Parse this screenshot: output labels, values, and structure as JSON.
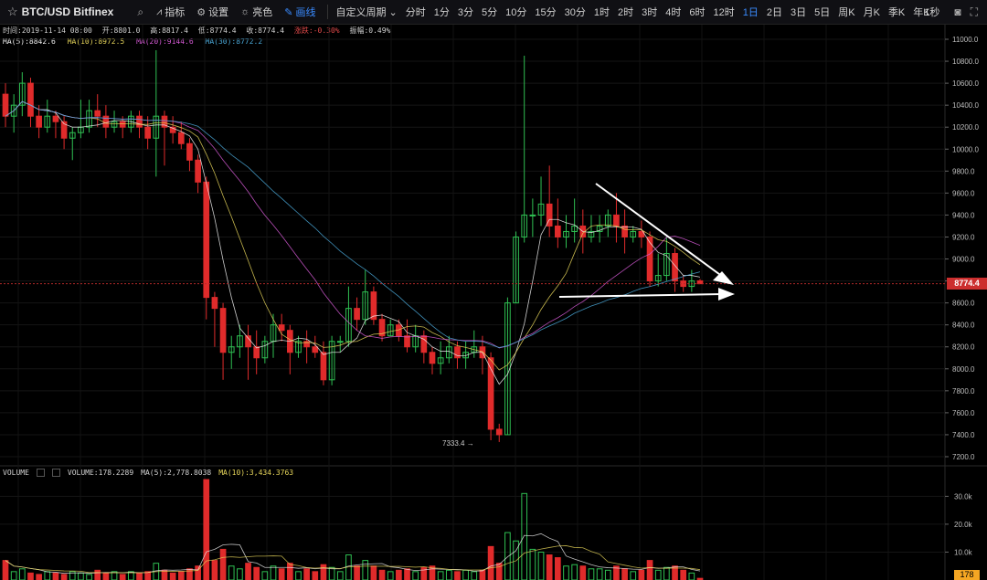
{
  "toolbar": {
    "symbol": "BTC/USD Bitfinex",
    "indicators_label": "指标",
    "settings_label": "设置",
    "theme_label": "亮色",
    "draw_label": "画线",
    "custom_period_label": "自定义周期",
    "periods": [
      "分时",
      "1分",
      "3分",
      "5分",
      "10分",
      "15分",
      "30分",
      "1时",
      "2时",
      "3时",
      "4时",
      "6时",
      "12时",
      "1日",
      "2日",
      "3日",
      "5日",
      "周K",
      "月K",
      "季K",
      "年K"
    ],
    "active_period": "1日",
    "interval_label": "1秒"
  },
  "ohlc": {
    "time": "时间:2019-11-14 08:00",
    "open": "开:8801.0",
    "high": "高:8817.4",
    "low": "低:8774.4",
    "close": "收:8774.4",
    "change": "涨跌:-0.30%",
    "amplitude": "振幅:0.49%"
  },
  "ma": {
    "ma5": "MA(5):8842.6",
    "ma10": "MA(10):8972.5",
    "ma20": "MA(20):9144.6",
    "ma30": "MA(30):8772.2"
  },
  "volume_header": {
    "label": "VOLUME",
    "value": "VOLUME:178.2289",
    "ma5": "MA(5):2,778.8038",
    "ma10": "MA(10):3,434.3763"
  },
  "current_price": "8774.4",
  "current_volume": "178",
  "low_marker": "7333.4 →",
  "price_axis": [
    "11000.0",
    "10800.0",
    "10600.0",
    "10400.0",
    "10200.0",
    "10000.0",
    "9800.0",
    "9600.0",
    "9400.0",
    "9200.0",
    "9000.0",
    "8800.0",
    "8600.0",
    "8400.0",
    "8200.0",
    "8000.0",
    "7800.0",
    "7600.0",
    "7400.0",
    "7200.0"
  ],
  "volume_axis": [
    "30.0k",
    "20.0k",
    "10.0k"
  ],
  "colors": {
    "up": "#2fbf52",
    "down": "#e02b2b",
    "ma5": "#f0f0f0",
    "ma10": "#e6d55a",
    "ma20": "#d65ad6",
    "ma30": "#4aa8d8",
    "accent": "#3a8bff"
  },
  "chart_data": {
    "type": "candlestick",
    "title": "BTC/USD Bitfinex",
    "interval": "1日",
    "ylim": [
      7200,
      11000
    ],
    "candles": [
      [
        10500,
        10300,
        10200,
        10600
      ],
      [
        10300,
        10400,
        10150,
        10500
      ],
      [
        10400,
        10600,
        10300,
        10700
      ],
      [
        10600,
        10300,
        10200,
        10650
      ],
      [
        10300,
        10200,
        10100,
        10400
      ],
      [
        10200,
        10300,
        10150,
        10450
      ],
      [
        10300,
        10250,
        10100,
        10350
      ],
      [
        10250,
        10100,
        10000,
        10300
      ],
      [
        10100,
        10150,
        9900,
        10200
      ],
      [
        10150,
        10200,
        10100,
        10450
      ],
      [
        10200,
        10350,
        10150,
        10450
      ],
      [
        10350,
        10300,
        10200,
        10500
      ],
      [
        10300,
        10200,
        10100,
        10400
      ],
      [
        10200,
        10250,
        10150,
        10350
      ],
      [
        10250,
        10200,
        10100,
        10300
      ],
      [
        10200,
        10300,
        10150,
        10350
      ],
      [
        10300,
        10200,
        10100,
        10350
      ],
      [
        10200,
        10100,
        10000,
        10300
      ],
      [
        10100,
        10300,
        9750,
        10900
      ],
      [
        10300,
        10200,
        9850,
        10350
      ],
      [
        10200,
        10150,
        10050,
        10300
      ],
      [
        10150,
        10050,
        10000,
        10250
      ],
      [
        10050,
        9900,
        9800,
        10100
      ],
      [
        9900,
        9700,
        9600,
        9950
      ],
      [
        9700,
        8650,
        8450,
        9750
      ],
      [
        8650,
        8550,
        8200,
        8700
      ],
      [
        8550,
        8150,
        7900,
        8600
      ],
      [
        8150,
        8200,
        8000,
        8300
      ],
      [
        8200,
        8300,
        8100,
        8400
      ],
      [
        8300,
        8200,
        7900,
        8400
      ],
      [
        8200,
        8100,
        7950,
        8350
      ],
      [
        8100,
        8250,
        8050,
        8300
      ],
      [
        8250,
        8400,
        8100,
        8500
      ],
      [
        8400,
        8350,
        8250,
        8500
      ],
      [
        8350,
        8150,
        7950,
        8400
      ],
      [
        8150,
        8250,
        8100,
        8300
      ],
      [
        8250,
        8200,
        8050,
        8350
      ],
      [
        8200,
        8150,
        8100,
        8300
      ],
      [
        8150,
        7900,
        7850,
        8250
      ],
      [
        7900,
        8250,
        7850,
        8300
      ],
      [
        8250,
        8250,
        8150,
        8300
      ],
      [
        8250,
        8550,
        8200,
        8750
      ],
      [
        8550,
        8450,
        8350,
        8650
      ],
      [
        8450,
        8700,
        8400,
        8900
      ],
      [
        8700,
        8450,
        8400,
        8750
      ],
      [
        8450,
        8300,
        8250,
        8500
      ],
      [
        8300,
        8400,
        8300,
        8450
      ],
      [
        8400,
        8300,
        8250,
        8450
      ],
      [
        8300,
        8200,
        8150,
        8450
      ],
      [
        8200,
        8300,
        8150,
        8400
      ],
      [
        8300,
        8150,
        8050,
        8350
      ],
      [
        8150,
        8050,
        7950,
        8200
      ],
      [
        8050,
        8100,
        7950,
        8250
      ],
      [
        8100,
        8200,
        8050,
        8300
      ],
      [
        8200,
        8100,
        8000,
        8250
      ],
      [
        8100,
        8150,
        8000,
        8250
      ],
      [
        8150,
        8200,
        8100,
        8350
      ],
      [
        8200,
        8100,
        7950,
        8300
      ],
      [
        8100,
        7450,
        7350,
        8150
      ],
      [
        7450,
        7400,
        7333.4,
        7500
      ],
      [
        7400,
        8600,
        7400,
        8650
      ],
      [
        8600,
        9200,
        8600,
        9250
      ],
      [
        9200,
        9400,
        9150,
        10850
      ],
      [
        9400,
        9400,
        9200,
        9550
      ],
      [
        9400,
        9500,
        9300,
        9750
      ],
      [
        9500,
        9300,
        9200,
        9850
      ],
      [
        9300,
        9200,
        9100,
        9550
      ],
      [
        9200,
        9250,
        9100,
        9400
      ],
      [
        9250,
        9300,
        9150,
        9550
      ],
      [
        9300,
        9200,
        9050,
        9450
      ],
      [
        9200,
        9250,
        9150,
        9400
      ],
      [
        9250,
        9300,
        9150,
        9400
      ],
      [
        9300,
        9400,
        9200,
        9450
      ],
      [
        9400,
        9300,
        9150,
        9600
      ],
      [
        9300,
        9200,
        9050,
        9450
      ],
      [
        9200,
        9250,
        9150,
        9300
      ],
      [
        9250,
        9200,
        9100,
        9350
      ],
      [
        9200,
        8800,
        8750,
        9250
      ],
      [
        8800,
        8850,
        8750,
        9050
      ],
      [
        8850,
        9050,
        8800,
        9200
      ],
      [
        9050,
        8800,
        8700,
        9100
      ],
      [
        8800,
        8750,
        8700,
        8850
      ],
      [
        8750,
        8800,
        8700,
        8900
      ],
      [
        8801.0,
        8774.4,
        8774.4,
        8817.4
      ]
    ]
  }
}
